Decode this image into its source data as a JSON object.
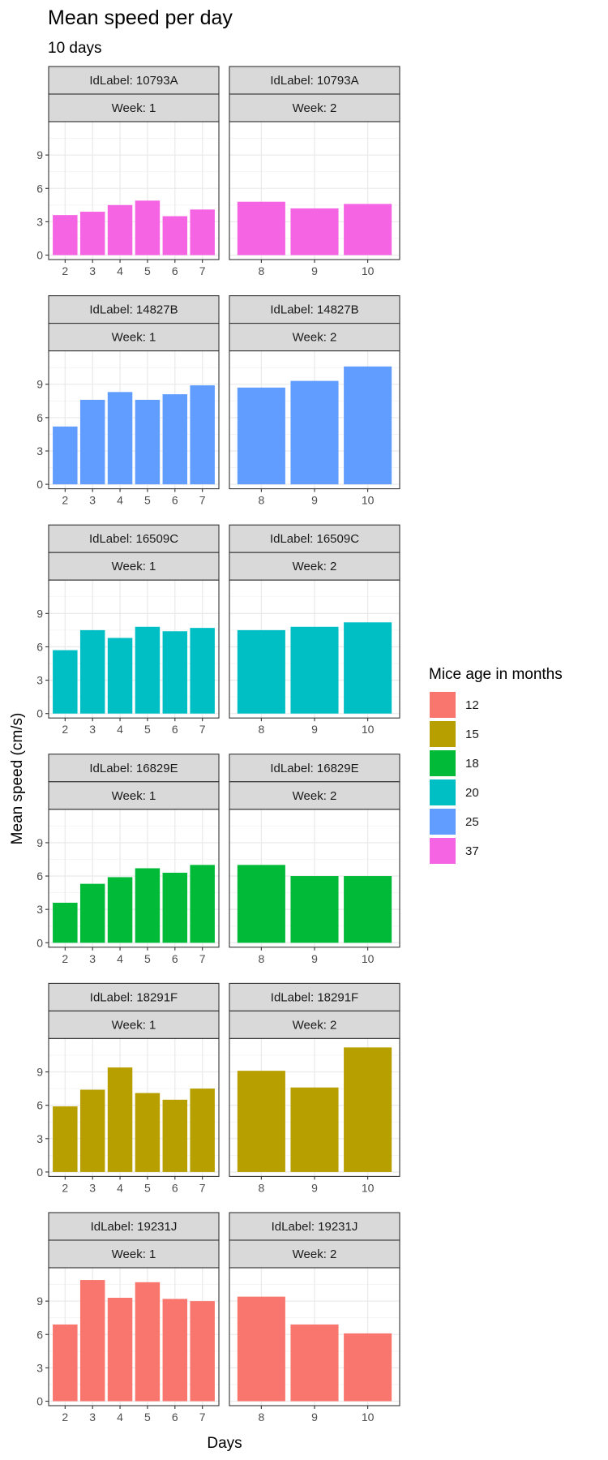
{
  "chart_data": {
    "type": "bar",
    "title": "Mean speed per day",
    "subtitle": "10  days",
    "xlabel": "Days",
    "ylabel": "Mean speed (cm/s)",
    "ylim": [
      -0.4,
      12
    ],
    "y_ticks": [
      "0",
      "3",
      "6",
      "9"
    ],
    "grid": true,
    "facet_row_label": "IdLabel: ",
    "facet_col_label": "Week: ",
    "weeks": [
      {
        "week": "1",
        "days": [
          "2",
          "3",
          "4",
          "5",
          "6",
          "7"
        ]
      },
      {
        "week": "2",
        "days": [
          "8",
          "9",
          "10"
        ]
      }
    ],
    "legend": {
      "title": "Mice age in months",
      "placement": "right",
      "entries": [
        {
          "label": "12",
          "color": "#F8766D"
        },
        {
          "label": "15",
          "color": "#B79F00"
        },
        {
          "label": "18",
          "color": "#00BA38"
        },
        {
          "label": "20",
          "color": "#00BFC4"
        },
        {
          "label": "25",
          "color": "#619CFF"
        },
        {
          "label": "37",
          "color": "#F564E3"
        }
      ]
    },
    "series": [
      {
        "id": "10793A",
        "age": "37",
        "color": "#F564E3",
        "week1": [
          3.6,
          3.9,
          4.5,
          4.9,
          3.5,
          4.1
        ],
        "week2": [
          4.8,
          4.2,
          4.6
        ]
      },
      {
        "id": "14827B",
        "age": "25",
        "color": "#619CFF",
        "week1": [
          5.2,
          7.6,
          8.3,
          7.6,
          8.1,
          8.9
        ],
        "week2": [
          8.7,
          9.3,
          10.6
        ]
      },
      {
        "id": "16509C",
        "age": "20",
        "color": "#00BFC4",
        "week1": [
          5.7,
          7.5,
          6.8,
          7.8,
          7.4,
          7.7
        ],
        "week2": [
          7.5,
          7.8,
          8.2
        ]
      },
      {
        "id": "16829E",
        "age": "18",
        "color": "#00BA38",
        "week1": [
          3.6,
          5.3,
          5.9,
          6.7,
          6.3,
          7.0
        ],
        "week2": [
          7.0,
          6.0,
          6.0
        ]
      },
      {
        "id": "18291F",
        "age": "15",
        "color": "#B79F00",
        "week1": [
          5.9,
          7.4,
          9.4,
          7.1,
          6.5,
          7.5
        ],
        "week2": [
          9.1,
          7.6,
          11.2
        ]
      },
      {
        "id": "19231J",
        "age": "12",
        "color": "#F8766D",
        "week1": [
          6.9,
          10.9,
          9.3,
          10.7,
          9.2,
          9.0
        ],
        "week2": [
          9.4,
          6.9,
          6.1
        ]
      }
    ]
  }
}
